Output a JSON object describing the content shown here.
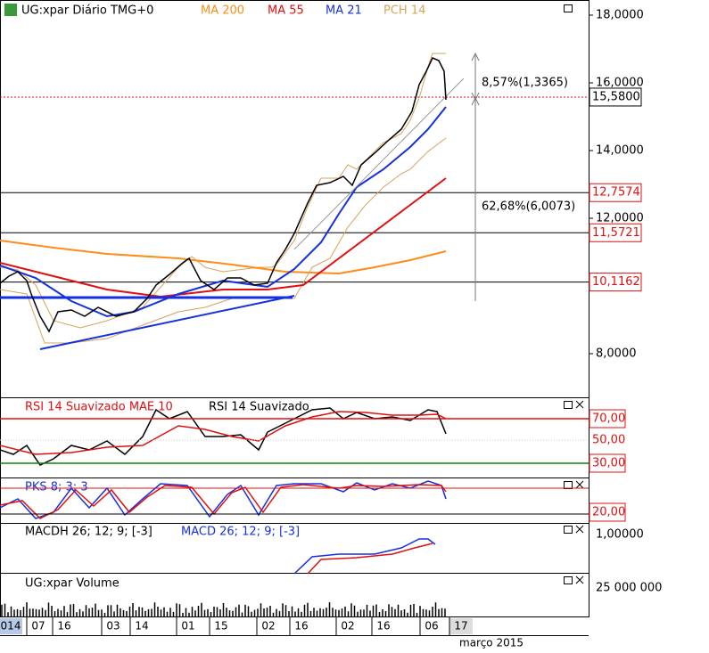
{
  "legend": {
    "symbol": "UG:xpar Diário TMG+0",
    "ma200": "MA 200",
    "ma55": "MA 55",
    "ma21": "MA 21",
    "pch": "PCH 14"
  },
  "price_axis": {
    "ticks": [
      {
        "value": 18,
        "label": "18,0000"
      },
      {
        "value": 16,
        "label": "16,0000"
      },
      {
        "value": 14,
        "label": "14,0000"
      },
      {
        "value": 12,
        "label": "12,0000"
      },
      {
        "value": 8,
        "label": "8,0000"
      }
    ],
    "levels": [
      {
        "value": 15.58,
        "label": "15,5800"
      },
      {
        "value": 12.7574,
        "label": "12,7574"
      },
      {
        "value": 11.5721,
        "label": "11,5721"
      },
      {
        "value": 10.1162,
        "label": "10,1162"
      }
    ]
  },
  "annotations": [
    "8,57%(1,3365)",
    "62,68%(6,0073)"
  ],
  "rsi": {
    "label_mae": "RSI 14 Suavizado MAE 10",
    "label": "RSI 14 Suavizado",
    "levels": [
      "70,00",
      "50,00",
      "30,00"
    ]
  },
  "pks": {
    "label": "PKS 8; 3; 3",
    "level": "20,00"
  },
  "macd": {
    "label_h": "MACDH 26; 12; 9; [-3]",
    "label": "MACD 26; 12; 9; [-3]",
    "tick": "1,00000"
  },
  "volume": {
    "label": "UG:xpar Volume",
    "tick": "25 000 000"
  },
  "dates": [
    "014",
    "07",
    "16",
    "03",
    "14",
    "01",
    "15",
    "02",
    "16",
    "02",
    "16",
    "06",
    "17"
  ],
  "month": "março 2015"
}
